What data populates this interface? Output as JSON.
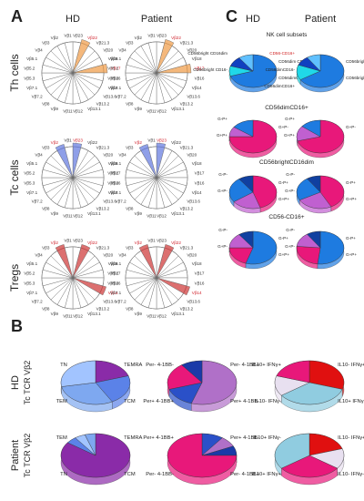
{
  "panels": {
    "A": {
      "letter": "A",
      "col_headers": [
        "HD",
        "Patient"
      ],
      "rows": [
        {
          "label": "Th cells",
          "accent": "#f0a050",
          "hd_labels": [
            "Vβ23",
            "Vβ22",
            "Vβ21.3",
            "Vβ20",
            "Vβ18",
            "Vβ17",
            "Vβ16",
            "Vβ14",
            "Vβ13.6",
            "Vβ13.2",
            "Vβ13.1",
            "Vβ12",
            "Vβ11",
            "Vβ9",
            "Vβ8",
            "Vβ7.2",
            "Vβ7.1",
            "Vβ5.3",
            "Vβ5.2",
            "Vβ5.1",
            "Vβ4",
            "Vβ3",
            "Vβ2",
            "Vβ1"
          ],
          "pt_labels": [
            "Vβ23",
            "Vβ22",
            "Vβ21.3",
            "Vβ20",
            "Vβ18",
            "Vβ17",
            "Vβ16",
            "Vβ14",
            "Vβ13.6",
            "Vβ13.2",
            "Vβ13.1",
            "Vβ12",
            "Vβ11",
            "Vβ9",
            "Vβ8",
            "Vβ7.2",
            "Vβ7.1",
            "Vβ5.3",
            "Vβ5.2",
            "Vβ5.1",
            "Vβ4",
            "Vβ3",
            "Vβ2",
            "Vβ1"
          ],
          "highlight": [
            "Vβ17",
            "Vβ22"
          ]
        },
        {
          "label": "Tc cells",
          "accent": "#6a7fe0",
          "hd_labels": [
            "Vβ23",
            "Vβ22",
            "Vβ21.3",
            "Vβ20",
            "Vβ18",
            "Vβ17",
            "Vβ16",
            "Vβ14",
            "Vβ13.6",
            "Vβ13.2",
            "Vβ13.1",
            "Vβ12",
            "Vβ11",
            "Vβ9",
            "Vβ8",
            "Vβ7.2",
            "Vβ7.1",
            "Vβ5.3",
            "Vβ5.2",
            "Vβ5.1",
            "Vβ4",
            "Vβ3",
            "Vβ2",
            "Vβ1"
          ],
          "pt_labels": [
            "Vβ23",
            "Vβ22",
            "Vβ21.3",
            "Vβ20",
            "Vβ18",
            "Vβ17",
            "Vβ16",
            "Vβ14",
            "Vβ13.6",
            "Vβ13.2",
            "Vβ13.1",
            "Vβ12",
            "Vβ11",
            "Vβ9",
            "Vβ8",
            "Vβ7.2",
            "Vβ7.1",
            "Vβ5.3",
            "Vβ5.2",
            "Vβ5.1",
            "Vβ4",
            "Vβ3",
            "Vβ2",
            "Vβ1"
          ],
          "highlight": [
            "Vβ2",
            "Vβ23"
          ]
        },
        {
          "label": "Tregs",
          "accent": "#d04040",
          "hd_labels": [
            "Vβ23",
            "Vβ22",
            "Vβ21.3",
            "Vβ20",
            "Vβ18",
            "Vβ17",
            "Vβ16",
            "Vβ14",
            "Vβ13.6",
            "Vβ13.2",
            "Vβ13.1",
            "Vβ12",
            "Vβ11",
            "Vβ9",
            "Vβ8",
            "Vβ7.2",
            "Vβ7.1",
            "Vβ5.3",
            "Vβ5.2",
            "Vβ5.1",
            "Vβ4",
            "Vβ3",
            "Vβ2",
            "Vβ1"
          ],
          "pt_labels": [
            "Vβ23",
            "Vβ22",
            "Vβ21.3",
            "Vβ20",
            "Vβ18",
            "Vβ17",
            "Vβ16",
            "Vβ14",
            "Vβ13.6",
            "Vβ13.2",
            "Vβ13.1",
            "Vβ12",
            "Vβ11",
            "Vβ9",
            "Vβ8",
            "Vβ7.2",
            "Vβ7.1",
            "Vβ5.3",
            "Vβ5.2",
            "Vβ5.1",
            "Vβ4",
            "Vβ3",
            "Vβ2",
            "Vβ1"
          ],
          "highlight": [
            "Vβ22",
            "Vβ2",
            "Vβ14"
          ]
        }
      ]
    },
    "C": {
      "letter": "C",
      "col_headers": [
        "HD",
        "Patient"
      ],
      "sections": [
        {
          "title": "NK cell subsets",
          "hd_labels": [
            "CD56bright CD16dim",
            "CD56dim CD16-",
            "CD56bright CD16-",
            "CD56dimCD16+"
          ],
          "pt_labels": [
            "CD56-CD16+",
            "CD56bright CD16-",
            "CD56dimCD16-",
            "CD56bright CD16dim",
            "CD56dimCD16+"
          ]
        },
        {
          "title": "CD56dimCD16+",
          "hd_labels": [
            "G-P+",
            "G+P-",
            "G+P+"
          ],
          "pt_labels": [
            "G-P+",
            "G+P-",
            "G+P+"
          ]
        },
        {
          "title": "CD56brightCD16dim",
          "hd_labels": [
            "G-P-",
            "G-P+",
            "G+P-",
            "G+P+"
          ],
          "pt_labels": [
            "G-P-",
            "G-P+",
            "G+P-",
            "G+P+"
          ]
        },
        {
          "title": "CD56-CD16+",
          "hd_labels": [
            "G-P-",
            "G-P+",
            "G+P-",
            "G+P+"
          ],
          "pt_labels": [
            "G-P-",
            "G-P+",
            "G+P-",
            "G+P+"
          ]
        }
      ]
    },
    "B": {
      "letter": "B",
      "rows": [
        {
          "label_line1": "HD",
          "label_line2": "Tc TCR Vβ2",
          "pies": [
            {
              "labels": [
                "TEMRA",
                "TCM",
                "TEM",
                "TN"
              ]
            },
            {
              "labels": [
                "Per- 4-1BB+",
                "Per+ 4-1BB-",
                "Per+ 4-1BB+",
                "Per- 4-1BB-"
              ]
            },
            {
              "labels": [
                "IL10- IFNγ+",
                "IL10+ IFNγ-",
                "IL10- IFNγ-",
                "IL10+ IFNγ+"
              ]
            }
          ]
        },
        {
          "label_line1": "Patient",
          "label_line2": "Tc TCR Vβ2",
          "pies": [
            {
              "labels": [
                "TEMRA",
                "TCM",
                "TN",
                "TEM"
              ]
            },
            {
              "labels": [
                "Per+ 4-1BB-",
                "Per- 4-1BB+",
                "Per- 4-1BB-",
                "Per+ 4-1BB+"
              ]
            },
            {
              "labels": [
                "IL10- IFNγ+",
                "IL10- IFNγ-",
                "IL10+ IFNγ+",
                "IL10+ IFNγ-"
              ]
            }
          ]
        }
      ]
    }
  }
}
